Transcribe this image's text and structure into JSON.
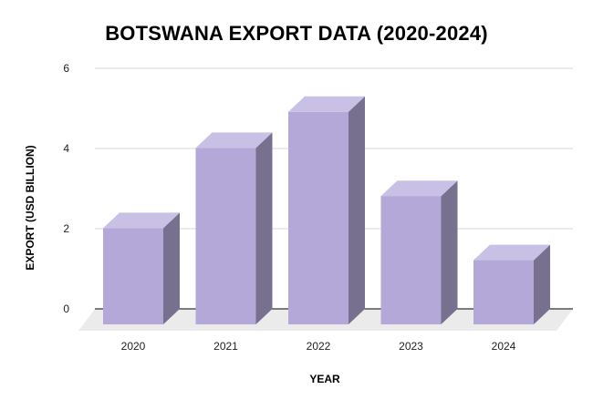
{
  "chart_data": {
    "type": "bar",
    "title": "BOTSWANA EXPORT DATA (2020-2024)",
    "xlabel": "YEAR",
    "ylabel": "EXPORT (USD BILLION)",
    "categories": [
      "2020",
      "2021",
      "2022",
      "2023",
      "2024"
    ],
    "values": [
      2.4,
      4.4,
      5.3,
      3.2,
      1.6
    ],
    "ylim": [
      0,
      6
    ],
    "yticks": [
      "0",
      "2",
      "4",
      "6"
    ],
    "grid": true,
    "legend": "none",
    "colors": {
      "bar_front": "#b3a8d8",
      "bar_top": "#c9c0e6",
      "bar_side": "#77708f",
      "grid": "#d9d9d9",
      "floor": "#ebebeb"
    }
  }
}
